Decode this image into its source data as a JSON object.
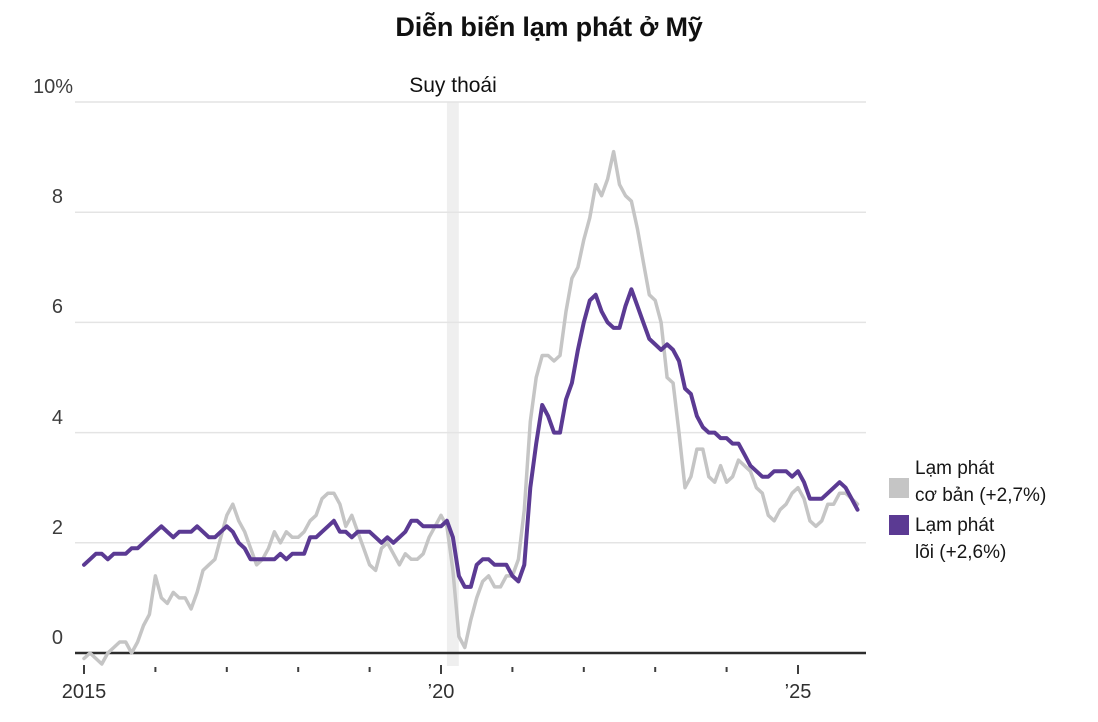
{
  "title": "Diễn biến lạm phát ở Mỹ",
  "annotations": {
    "recession_label": "Suy thoái"
  },
  "legend": [
    {
      "label_line1": "Lạm phát",
      "label_line2": "cơ bản (+2,7%)",
      "color": "#c5c5c5",
      "series": "headline"
    },
    {
      "label_line1": "Lạm phát",
      "label_line2": "lõi (+2,6%)",
      "color": "#5b3a93",
      "series": "core"
    }
  ],
  "colors": {
    "headline_line": "#c5c5c5",
    "core_line": "#5b3a93",
    "gridline": "#e4e4e4",
    "zero_axis": "#2d2d2d",
    "recession_band": "#efefef",
    "tick": "#3f3f3f"
  },
  "chart_data": {
    "type": "line",
    "title": "Diễn biến lạm phát ở Mỹ",
    "x_start": "2015-01",
    "x_interval": "monthly",
    "x_end": "2025-11",
    "ylim": [
      -0.4,
      10
    ],
    "grid": "horizontal",
    "legend_position": "right",
    "y_ticks": [
      {
        "label": "10%",
        "value": 10
      },
      {
        "label": "8",
        "value": 8
      },
      {
        "label": "6",
        "value": 6
      },
      {
        "label": "4",
        "value": 4
      },
      {
        "label": "2",
        "value": 2
      },
      {
        "label": "0",
        "value": 0
      }
    ],
    "x_tick_labels": [
      {
        "label": "2015",
        "year": 2015
      },
      {
        "label": "’20",
        "year": 2020
      },
      {
        "label": "’25",
        "year": 2025
      }
    ],
    "x_minor_tick_years": [
      2016,
      2017,
      2018,
      2019,
      2021,
      2022,
      2023,
      2024
    ],
    "recession_band": {
      "start": "2020-02",
      "end": "2020-04",
      "label": "Suy thoái"
    },
    "series": [
      {
        "name": "Lạm phát cơ bản",
        "latest_value_label": "+2,7%",
        "color": "#c5c5c5",
        "values": [
          -0.1,
          0.0,
          -0.1,
          -0.2,
          0.0,
          0.1,
          0.2,
          0.2,
          0.0,
          0.2,
          0.5,
          0.7,
          1.4,
          1.0,
          0.9,
          1.1,
          1.0,
          1.0,
          0.8,
          1.1,
          1.5,
          1.6,
          1.7,
          2.1,
          2.5,
          2.7,
          2.4,
          2.2,
          1.9,
          1.6,
          1.7,
          1.9,
          2.2,
          2.0,
          2.2,
          2.1,
          2.1,
          2.2,
          2.4,
          2.5,
          2.8,
          2.9,
          2.9,
          2.7,
          2.3,
          2.5,
          2.2,
          1.9,
          1.6,
          1.5,
          1.9,
          2.0,
          1.8,
          1.6,
          1.8,
          1.7,
          1.7,
          1.8,
          2.1,
          2.3,
          2.5,
          2.3,
          1.5,
          0.3,
          0.1,
          0.6,
          1.0,
          1.3,
          1.4,
          1.2,
          1.2,
          1.4,
          1.4,
          1.7,
          2.6,
          4.2,
          5.0,
          5.4,
          5.4,
          5.3,
          5.4,
          6.2,
          6.8,
          7.0,
          7.5,
          7.9,
          8.5,
          8.3,
          8.6,
          9.1,
          8.5,
          8.3,
          8.2,
          7.7,
          7.1,
          6.5,
          6.4,
          6.0,
          5.0,
          4.9,
          4.0,
          3.0,
          3.2,
          3.7,
          3.7,
          3.2,
          3.1,
          3.4,
          3.1,
          3.2,
          3.5,
          3.4,
          3.3,
          3.0,
          2.9,
          2.5,
          2.4,
          2.6,
          2.7,
          2.9,
          3.0,
          2.8,
          2.4,
          2.3,
          2.4,
          2.7,
          2.7,
          2.9,
          2.9,
          2.8,
          2.7
        ]
      },
      {
        "name": "Lạm phát lõi",
        "latest_value_label": "+2,6%",
        "color": "#5b3a93",
        "values": [
          1.6,
          1.7,
          1.8,
          1.8,
          1.7,
          1.8,
          1.8,
          1.8,
          1.9,
          1.9,
          2.0,
          2.1,
          2.2,
          2.3,
          2.2,
          2.1,
          2.2,
          2.2,
          2.2,
          2.3,
          2.2,
          2.1,
          2.1,
          2.2,
          2.3,
          2.2,
          2.0,
          1.9,
          1.7,
          1.7,
          1.7,
          1.7,
          1.7,
          1.8,
          1.7,
          1.8,
          1.8,
          1.8,
          2.1,
          2.1,
          2.2,
          2.3,
          2.4,
          2.2,
          2.2,
          2.1,
          2.2,
          2.2,
          2.2,
          2.1,
          2.0,
          2.1,
          2.0,
          2.1,
          2.2,
          2.4,
          2.4,
          2.3,
          2.3,
          2.3,
          2.3,
          2.4,
          2.1,
          1.4,
          1.2,
          1.2,
          1.6,
          1.7,
          1.7,
          1.6,
          1.6,
          1.6,
          1.4,
          1.3,
          1.6,
          3.0,
          3.8,
          4.5,
          4.3,
          4.0,
          4.0,
          4.6,
          4.9,
          5.5,
          6.0,
          6.4,
          6.5,
          6.2,
          6.0,
          5.9,
          5.9,
          6.3,
          6.6,
          6.3,
          6.0,
          5.7,
          5.6,
          5.5,
          5.6,
          5.5,
          5.3,
          4.8,
          4.7,
          4.3,
          4.1,
          4.0,
          4.0,
          3.9,
          3.9,
          3.8,
          3.8,
          3.6,
          3.4,
          3.3,
          3.2,
          3.2,
          3.3,
          3.3,
          3.3,
          3.2,
          3.3,
          3.1,
          2.8,
          2.8,
          2.8,
          2.9,
          3.0,
          3.1,
          3.0,
          2.8,
          2.6
        ]
      }
    ]
  }
}
